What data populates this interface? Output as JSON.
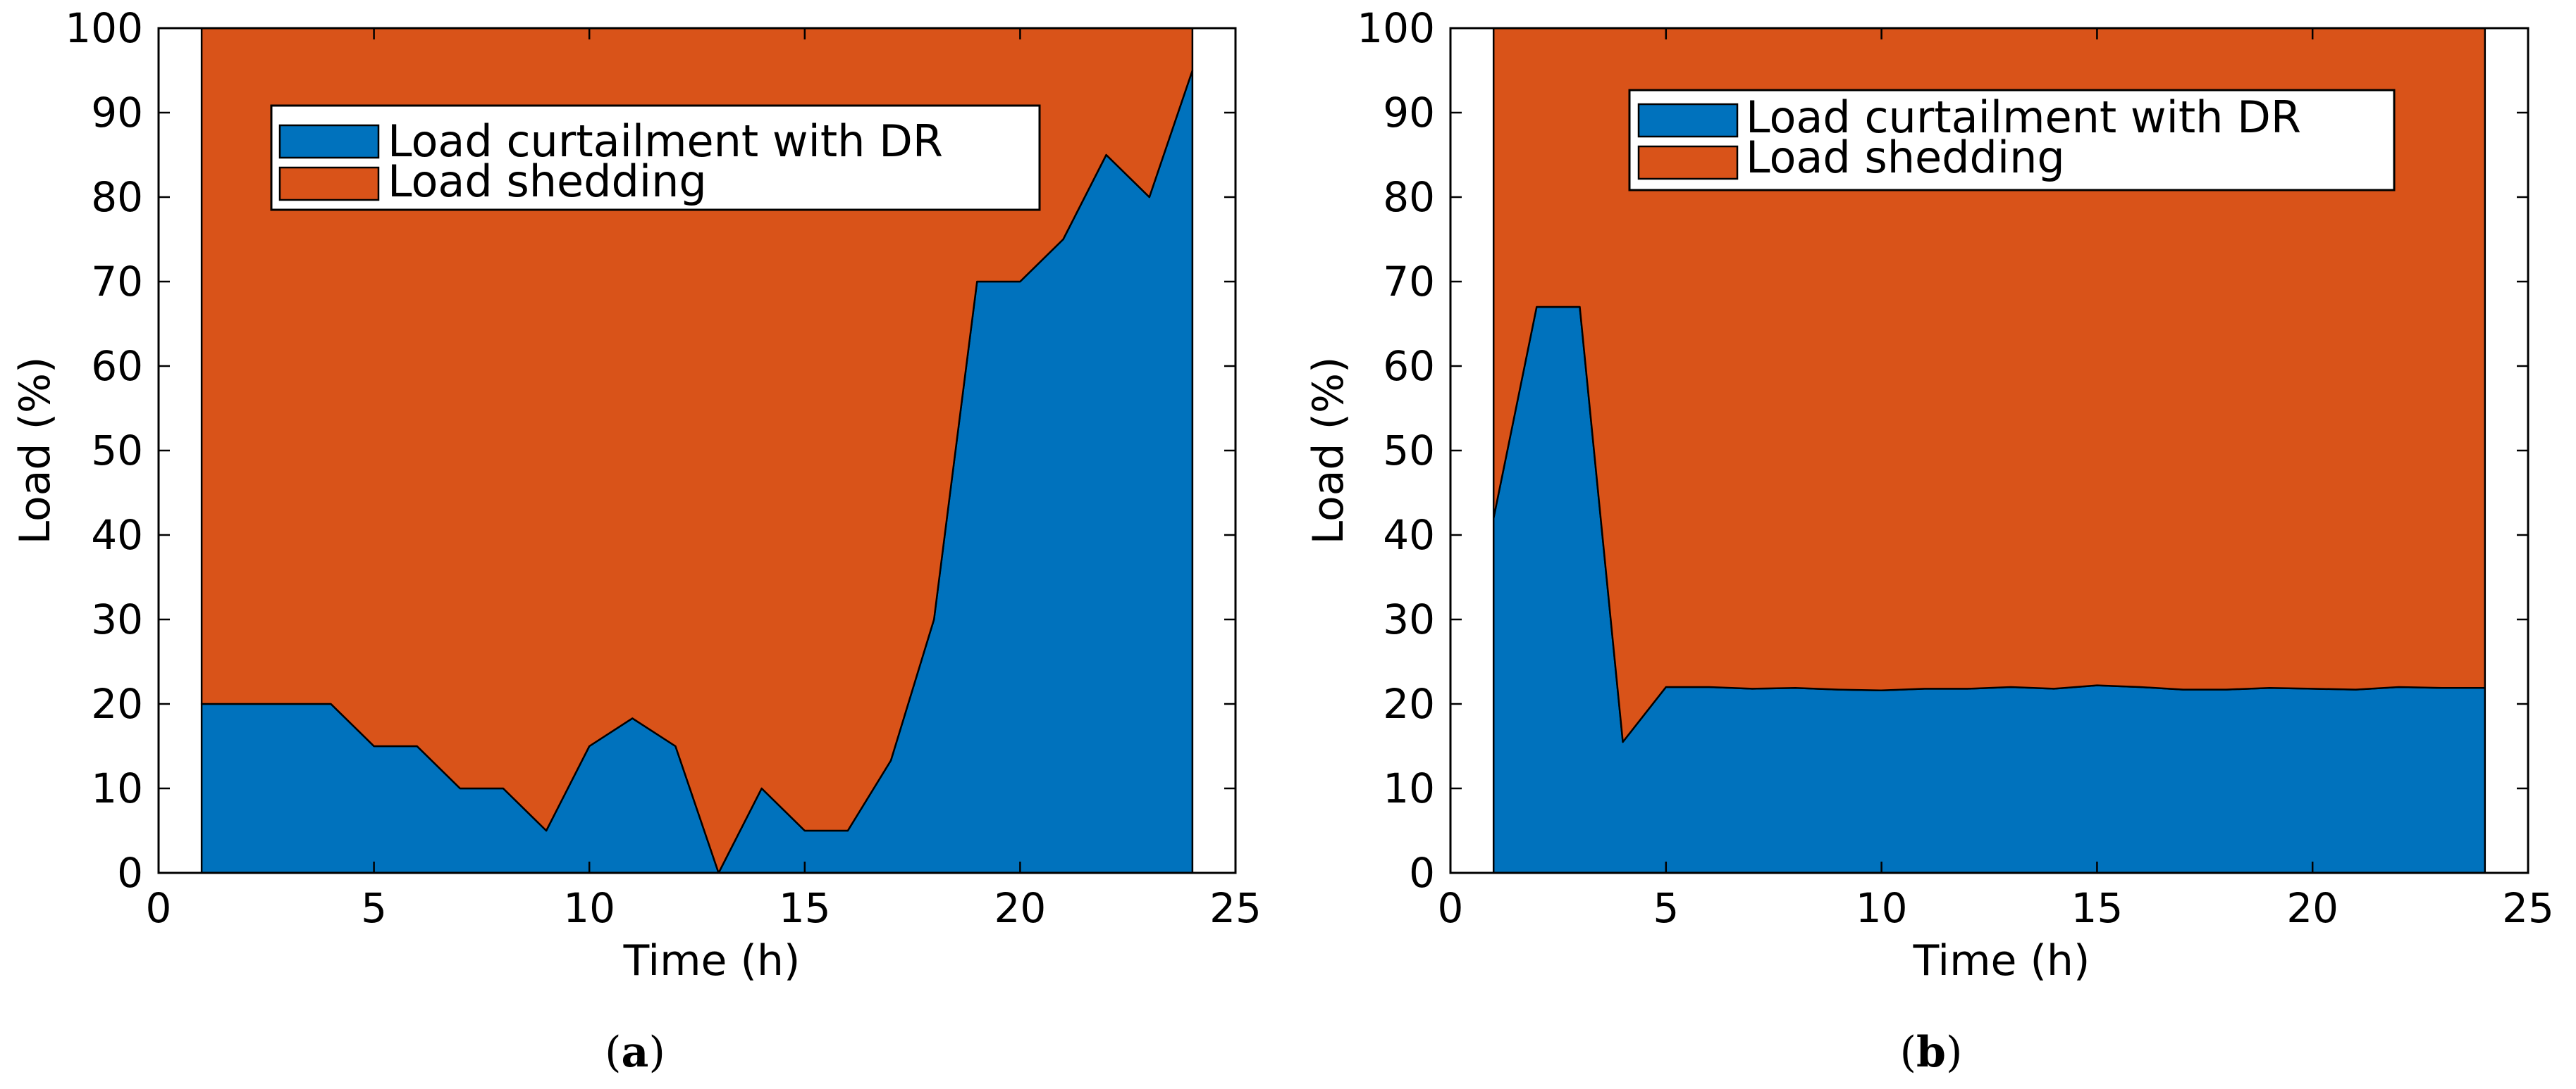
{
  "colors": {
    "curtailment": "#0072BD",
    "shedding": "#D95319",
    "axis": "#000000",
    "background": "#FFFFFF"
  },
  "chart_data": [
    {
      "type": "area",
      "caption": {
        "open": "(",
        "letter": "a",
        "close": ")"
      },
      "xlabel": "Time (h)",
      "ylabel": "Load (%)",
      "xlim": [
        0,
        25
      ],
      "ylim": [
        0,
        100
      ],
      "xticks": [
        "0",
        "5",
        "10",
        "15",
        "20",
        "25"
      ],
      "yticks": [
        "0",
        "10",
        "20",
        "30",
        "40",
        "50",
        "60",
        "70",
        "80",
        "90",
        "100"
      ],
      "legend": {
        "location": "top-center",
        "entries": [
          "Load curtailment with DR",
          "Load shedding"
        ]
      },
      "x": [
        1,
        2,
        3,
        4,
        5,
        6,
        7,
        8,
        9,
        10,
        11,
        12,
        13,
        14,
        15,
        16,
        17,
        18,
        19,
        20,
        21,
        22,
        23,
        24
      ],
      "series": [
        {
          "name": "Load curtailment with DR",
          "values": [
            20,
            20,
            20,
            20,
            15,
            15,
            10,
            10,
            5,
            15,
            18.3,
            15,
            0,
            10,
            5,
            5,
            13.3,
            30,
            70,
            70,
            75,
            85,
            80,
            95
          ]
        },
        {
          "name": "Load shedding",
          "values": [
            80,
            80,
            80,
            80,
            85,
            85,
            90,
            90,
            95,
            85,
            81.7,
            85,
            100,
            90,
            95,
            95,
            86.7,
            70,
            30,
            30,
            25,
            15,
            20,
            5
          ]
        }
      ]
    },
    {
      "type": "area",
      "caption": {
        "open": "(",
        "letter": "b",
        "close": ")"
      },
      "xlabel": "Time (h)",
      "ylabel": "Load (%)",
      "xlim": [
        0,
        25
      ],
      "ylim": [
        0,
        100
      ],
      "xticks": [
        "0",
        "5",
        "10",
        "15",
        "20",
        "25"
      ],
      "yticks": [
        "0",
        "10",
        "20",
        "30",
        "40",
        "50",
        "60",
        "70",
        "80",
        "90",
        "100"
      ],
      "legend": {
        "location": "top-center",
        "entries": [
          "Load curtailment with DR",
          "Load shedding"
        ]
      },
      "x": [
        1,
        2,
        3,
        4,
        5,
        6,
        7,
        8,
        9,
        10,
        11,
        12,
        13,
        14,
        15,
        16,
        17,
        18,
        19,
        20,
        21,
        22,
        23,
        24
      ],
      "series": [
        {
          "name": "Load curtailment with DR",
          "values": [
            42,
            67,
            67,
            15.5,
            22,
            22,
            21.8,
            21.9,
            21.7,
            21.6,
            21.8,
            21.8,
            22,
            21.8,
            22.2,
            22,
            21.7,
            21.7,
            21.9,
            21.8,
            21.7,
            22,
            21.9,
            21.9
          ]
        },
        {
          "name": "Load shedding",
          "values": [
            58,
            33,
            33,
            84.5,
            78,
            78,
            78.2,
            78.1,
            78.3,
            78.4,
            78.2,
            78.2,
            78,
            78.2,
            77.8,
            78,
            78.3,
            78.3,
            78.1,
            78.2,
            78.3,
            78,
            78.1,
            78.1
          ]
        }
      ]
    }
  ]
}
